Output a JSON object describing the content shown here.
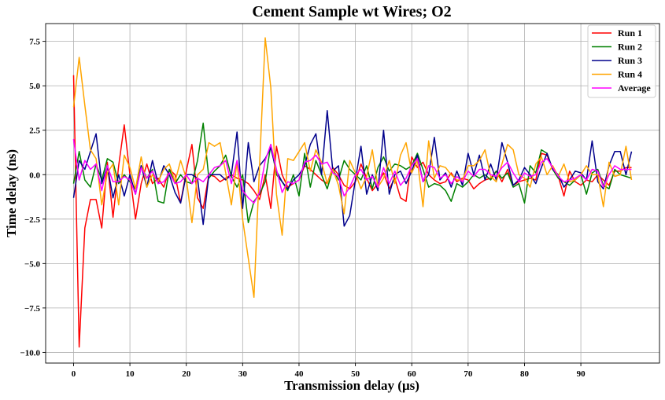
{
  "chart_data": {
    "type": "line",
    "title": "Cement Sample wt Wires; O2",
    "xlabel": "Transmission delay (μs)",
    "ylabel": "Time delay (ns)",
    "xlim": [
      -4.95,
      103.95
    ],
    "ylim": [
      -10.6,
      8.5
    ],
    "x_ticks": [
      0,
      10,
      20,
      30,
      40,
      50,
      60,
      70,
      80,
      90
    ],
    "y_ticks": [
      -10.0,
      -7.5,
      -5.0,
      -2.5,
      0.0,
      2.5,
      5.0,
      7.5
    ],
    "x_tick_labels": [
      "0",
      "10",
      "20",
      "30",
      "40",
      "50",
      "60",
      "70",
      "80",
      "90"
    ],
    "y_tick_labels": [
      "−10.0",
      "−7.5",
      "−5.0",
      "−2.5",
      "0.0",
      "2.5",
      "5.0",
      "7.5"
    ],
    "grid": true,
    "legend_position": "top-right",
    "x": [
      0,
      1,
      2,
      3,
      4,
      5,
      6,
      7,
      8,
      9,
      10,
      11,
      12,
      13,
      14,
      15,
      16,
      17,
      18,
      19,
      20,
      21,
      22,
      23,
      24,
      25,
      26,
      27,
      28,
      29,
      30,
      31,
      32,
      33,
      34,
      35,
      36,
      37,
      38,
      39,
      40,
      41,
      42,
      43,
      44,
      45,
      46,
      47,
      48,
      49,
      50,
      51,
      52,
      53,
      54,
      55,
      56,
      57,
      58,
      59,
      60,
      61,
      62,
      63,
      64,
      65,
      66,
      67,
      68,
      69,
      70,
      71,
      72,
      73,
      74,
      75,
      76,
      77,
      78,
      79,
      80,
      81,
      82,
      83,
      84,
      85,
      86,
      87,
      88,
      89,
      90,
      91,
      92,
      93,
      94,
      95,
      96,
      97,
      98,
      99
    ],
    "series": [
      {
        "name": "Run 1",
        "color": "#ff0000",
        "values": [
          5.6,
          -9.7,
          -3.0,
          -1.4,
          -1.4,
          -3.0,
          0.7,
          -2.4,
          0.5,
          2.8,
          0.0,
          -2.5,
          -0.5,
          0.6,
          -0.5,
          -0.2,
          -0.7,
          0.3,
          0.0,
          -1.6,
          0.2,
          1.7,
          -1.3,
          -1.9,
          0.0,
          -0.1,
          -0.4,
          -0.2,
          0.0,
          -0.2,
          -0.3,
          -0.5,
          -0.9,
          -1.4,
          0.0,
          -1.9,
          1.6,
          0.0,
          -0.7,
          -0.5,
          -0.3,
          0.5,
          0.3,
          0.0,
          -0.3,
          -0.5,
          0.4,
          0.0,
          -0.6,
          -0.8,
          -0.4,
          0.6,
          -0.2,
          -0.9,
          -0.5,
          0.1,
          -0.8,
          -0.2,
          -1.3,
          -1.5,
          1.0,
          0.4,
          0.7,
          0.0,
          -0.3,
          -0.5,
          -0.4,
          0.1,
          -0.4,
          -0.2,
          -0.3,
          -0.8,
          -0.5,
          -0.3,
          -0.2,
          0.2,
          -0.4,
          0.3,
          -0.6,
          -0.4,
          -0.3,
          -0.2,
          -0.3,
          1.2,
          1.1,
          0.3,
          -0.1,
          -1.2,
          0.2,
          -0.4,
          -0.6,
          -0.3,
          -0.4,
          0.0,
          -0.3,
          -0.6,
          0.2,
          0.2,
          0.4,
          0.4
        ]
      },
      {
        "name": "Run 2",
        "color": "#008000",
        "values": [
          -0.5,
          1.3,
          -0.3,
          -0.7,
          0.6,
          -0.3,
          0.9,
          0.7,
          -0.5,
          0.0,
          -0.4,
          -0.8,
          0.5,
          -0.2,
          0.3,
          -1.5,
          -1.6,
          0.3,
          -0.5,
          0.0,
          -0.4,
          -0.5,
          0.8,
          2.9,
          -0.2,
          0.2,
          0.5,
          1.1,
          -0.1,
          -0.7,
          0.0,
          -2.7,
          -1.5,
          -1.1,
          -0.4,
          1.7,
          0.0,
          -0.4,
          -0.9,
          0.0,
          -1.2,
          1.2,
          -0.7,
          0.8,
          0.0,
          -0.8,
          0.3,
          -0.3,
          0.8,
          0.3,
          0.0,
          -0.3,
          0.5,
          -0.8,
          0.4,
          1.0,
          0.2,
          0.6,
          0.5,
          0.3,
          0.5,
          1.2,
          0.3,
          -0.7,
          -0.5,
          -0.6,
          -0.9,
          -1.5,
          -0.5,
          -0.7,
          -0.4,
          0.0,
          -0.2,
          0.0,
          -0.3,
          0.2,
          -0.2,
          0.1,
          -0.7,
          -0.5,
          -1.6,
          0.5,
          0.1,
          1.4,
          1.2,
          0.3,
          -0.2,
          -0.4,
          -0.6,
          -0.3,
          0.0,
          -1.1,
          0.1,
          0.3,
          -0.6,
          -0.8,
          0.3,
          0.0,
          -0.1,
          -0.2
        ]
      },
      {
        "name": "Run 3",
        "color": "#00008b",
        "values": [
          -1.3,
          0.8,
          0.3,
          1.3,
          2.3,
          -0.5,
          0.5,
          -1.3,
          0.0,
          -1.2,
          0.0,
          -1.1,
          0.5,
          -0.7,
          0.8,
          -0.5,
          0.5,
          0.0,
          -1.0,
          -1.6,
          0.0,
          0.0,
          -0.2,
          -2.8,
          0.0,
          0.0,
          0.0,
          -0.3,
          0.0,
          2.4,
          -1.9,
          1.8,
          -0.4,
          0.5,
          0.9,
          1.5,
          0.2,
          -0.4,
          -0.8,
          -0.3,
          0.0,
          0.5,
          1.7,
          2.3,
          0.0,
          3.6,
          0.2,
          0.5,
          -2.9,
          -2.3,
          -0.3,
          1.6,
          -1.1,
          0.0,
          -0.9,
          2.5,
          -1.1,
          0.0,
          0.2,
          -0.5,
          0.2,
          1.1,
          -0.4,
          0.0,
          2.1,
          -0.3,
          0.1,
          -0.7,
          0.2,
          -0.6,
          1.2,
          0.0,
          1.1,
          -0.3,
          0.6,
          -0.3,
          1.8,
          0.7,
          -0.6,
          -0.3,
          0.4,
          0.0,
          -0.5,
          0.4,
          1.2,
          0.3,
          0.0,
          -0.7,
          -0.3,
          0.2,
          0.1,
          -0.3,
          1.9,
          -0.4,
          -0.8,
          0.5,
          1.3,
          1.3,
          0.0,
          1.3
        ]
      },
      {
        "name": "Run 4",
        "color": "#ffa500",
        "values": [
          3.8,
          6.6,
          3.9,
          1.4,
          0.9,
          -1.7,
          0.1,
          0.6,
          -1.7,
          1.1,
          0.4,
          -0.8,
          1.0,
          -0.7,
          0.0,
          -0.4,
          0.3,
          0.6,
          -0.4,
          0.8,
          -0.2,
          -2.7,
          0.0,
          0.3,
          1.8,
          1.6,
          1.8,
          0.1,
          -1.7,
          0.7,
          -2.5,
          -4.7,
          -6.9,
          0.5,
          7.7,
          4.9,
          -1.1,
          -3.4,
          0.9,
          0.8,
          1.3,
          1.8,
          0.2,
          1.4,
          0.7,
          -0.5,
          0.3,
          -0.6,
          -2.2,
          0.8,
          0.1,
          -0.8,
          -0.1,
          1.4,
          -0.7,
          -0.2,
          0.8,
          -0.5,
          1.1,
          1.8,
          0.1,
          0.8,
          -1.8,
          1.9,
          -0.2,
          0.5,
          0.4,
          0.0,
          -0.3,
          -0.3,
          0.5,
          0.5,
          0.8,
          1.4,
          -0.1,
          -0.4,
          0.6,
          1.7,
          1.4,
          0.0,
          -0.2,
          -0.7,
          0.6,
          1.0,
          0.0,
          0.5,
          -0.1,
          0.6,
          -0.4,
          -0.3,
          0.0,
          0.5,
          0.0,
          0.0,
          -1.8,
          0.7,
          -0.1,
          0.0,
          1.6,
          -0.3
        ]
      },
      {
        "name": "Average",
        "color": "#ff00ff",
        "values": [
          2.0,
          -0.3,
          0.8,
          0.3,
          0.6,
          -0.9,
          0.5,
          -0.4,
          -0.4,
          -0.1,
          -0.3,
          -1.1,
          0.4,
          -0.2,
          0.2,
          -0.5,
          -0.4,
          0.1,
          -0.5,
          -0.4,
          0.0,
          -0.5,
          -0.2,
          -0.4,
          0.0,
          0.4,
          0.5,
          0.8,
          -0.5,
          0.8,
          -0.9,
          -1.3,
          -1.6,
          -1.0,
          0.8,
          1.7,
          0.3,
          -1.0,
          -0.4,
          -0.5,
          -0.3,
          0.7,
          0.8,
          1.1,
          0.6,
          0.7,
          0.1,
          -0.1,
          -1.2,
          -0.7,
          0.0,
          0.3,
          -0.3,
          -0.1,
          -0.7,
          0.4,
          -0.5,
          0.2,
          -0.6,
          -0.2,
          0.5,
          0.9,
          -0.4,
          0.5,
          0.4,
          -0.2,
          0.0,
          -0.5,
          -0.1,
          -0.4,
          0.2,
          -0.1,
          0.3,
          0.3,
          0.0,
          -0.1,
          0.4,
          0.7,
          0.1,
          -0.4,
          0.1,
          -0.1,
          0.0,
          0.7,
          0.9,
          0.4,
          -0.1,
          -0.4,
          -0.3,
          -0.2,
          0.0,
          -0.3,
          0.3,
          0.2,
          -0.7,
          0.0,
          0.5,
          0.3,
          0.3,
          0.3
        ]
      }
    ]
  }
}
